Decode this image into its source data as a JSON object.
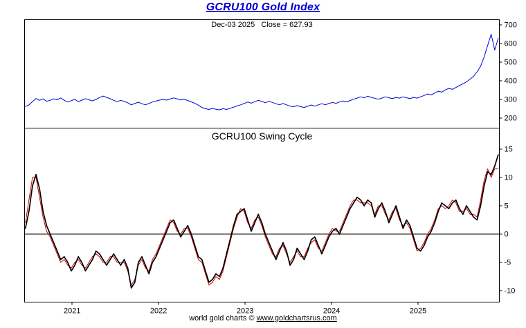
{
  "colors": {
    "title": "#0000cc",
    "axis": "#000000",
    "background": "#ffffff",
    "index_line": "#0000dd",
    "swing_fast": "#cc0000",
    "swing_slow": "#000000"
  },
  "footer": {
    "prefix": "world gold charts © ",
    "link": "www.goldchartsrus.com"
  },
  "chart_data": [
    {
      "type": "line",
      "title": "GCRU100 Gold Index",
      "subtitle": "Dec-03 2025   Close = 627.93",
      "x_range": [
        2020.45,
        2025.94
      ],
      "x_ticks": [
        2021,
        2022,
        2023,
        2024,
        2025
      ],
      "ylim": [
        146,
        728
      ],
      "yticks": [
        700,
        600,
        500,
        400,
        300,
        200
      ],
      "y_axis_side": "right",
      "grid": false,
      "legend": "none",
      "series": [
        {
          "name": "gold-index",
          "color": "#0000dd",
          "width": 1,
          "x0": 2020.46,
          "dx": 0.0408,
          "values": [
            262,
            270,
            288,
            305,
            295,
            303,
            290,
            295,
            303,
            298,
            308,
            295,
            286,
            293,
            300,
            288,
            296,
            304,
            298,
            292,
            300,
            310,
            318,
            311,
            304,
            295,
            288,
            295,
            289,
            282,
            271,
            278,
            285,
            277,
            271,
            278,
            286,
            291,
            296,
            300,
            296,
            302,
            308,
            303,
            297,
            301,
            294,
            287,
            279,
            269,
            257,
            250,
            246,
            252,
            247,
            244,
            250,
            246,
            252,
            258,
            265,
            271,
            278,
            286,
            280,
            288,
            295,
            289,
            282,
            290,
            284,
            277,
            271,
            278,
            271,
            264,
            261,
            267,
            261,
            257,
            263,
            270,
            264,
            271,
            277,
            271,
            278,
            284,
            279,
            286,
            292,
            287,
            294,
            301,
            307,
            314,
            309,
            317,
            311,
            306,
            301,
            307,
            314,
            309,
            304,
            311,
            307,
            314,
            309,
            304,
            311,
            307,
            314,
            321,
            329,
            324,
            334,
            344,
            339,
            351,
            359,
            354,
            364,
            374,
            384,
            394,
            409,
            424,
            448,
            478,
            528,
            590,
            650,
            565,
            627.93
          ]
        }
      ]
    },
    {
      "type": "line",
      "title": "GCRU100 Swing Cycle",
      "x_range": [
        2020.45,
        2025.94
      ],
      "x_ticks": [
        2021,
        2022,
        2023,
        2024,
        2025
      ],
      "ylim": [
        -12,
        18.7
      ],
      "yticks": [
        15,
        10,
        5,
        0,
        -5,
        -10
      ],
      "y_axis_side": "right",
      "grid": false,
      "zero_line": true,
      "legend": "none",
      "series": [
        {
          "name": "swing-cycle-fast",
          "color": "#cc0000",
          "width": 1,
          "x0": 2020.46,
          "dx": 0.0408,
          "values": [
            2,
            6,
            10,
            10,
            6.5,
            3,
            0.5,
            -0.5,
            -2,
            -3.5,
            -5,
            -4.5,
            -5.5,
            -6,
            -5,
            -4.5,
            -5.5,
            -6,
            -5,
            -4,
            -3.5,
            -4,
            -5,
            -5,
            -4,
            -4,
            -5,
            -5,
            -5,
            -6.5,
            -9,
            -8,
            -5.5,
            -4.5,
            -6,
            -6.5,
            -4.5,
            -3.5,
            -2,
            -0.5,
            1,
            2.5,
            2,
            0.5,
            0,
            1,
            1,
            -0.5,
            -2.5,
            -4.5,
            -5,
            -7,
            -9,
            -8.5,
            -7.5,
            -8,
            -6.5,
            -4,
            -1.5,
            1,
            3,
            4.5,
            4,
            2,
            1,
            2.5,
            3,
            1.5,
            -0.5,
            -2,
            -3.5,
            -4,
            -2.5,
            -2,
            -3.5,
            -5,
            -4,
            -3,
            -4,
            -4,
            -2.5,
            -1.5,
            -1,
            -2.5,
            -3,
            -1.5,
            0,
            1,
            0.5,
            0.5,
            2,
            3.5,
            5,
            6,
            6,
            5.5,
            5.5,
            5.5,
            5,
            3.5,
            5,
            5,
            3.5,
            2.5,
            4,
            4.5,
            2.5,
            1.5,
            2,
            1,
            -1,
            -3,
            -2.5,
            -1.5,
            0,
            1,
            2.5,
            4.5,
            5,
            4.5,
            5,
            6,
            5.5,
            4,
            4,
            4.5,
            3.5,
            3.5,
            3,
            6,
            9.5,
            11.5,
            10,
            11.5,
            11.5
          ]
        },
        {
          "name": "swing-cycle-slow",
          "color": "#000000",
          "width": 1.7,
          "x0": 2020.46,
          "dx": 0.0408,
          "values": [
            1,
            4,
            8.5,
            10.5,
            8,
            4,
            1.5,
            0,
            -1.5,
            -3,
            -4.5,
            -4,
            -5,
            -6.5,
            -5.5,
            -4,
            -5,
            -6.5,
            -5.5,
            -4.5,
            -3,
            -3.5,
            -4.5,
            -5.5,
            -4.5,
            -3.5,
            -4.5,
            -5.5,
            -4.5,
            -6,
            -9.5,
            -8.5,
            -5,
            -4,
            -5.5,
            -7,
            -5,
            -4,
            -2.5,
            -1,
            0.5,
            2,
            2.5,
            1,
            -0.5,
            0.5,
            1.5,
            0,
            -2,
            -4,
            -4.5,
            -6.5,
            -8.5,
            -8,
            -7,
            -7.5,
            -6,
            -3.5,
            -1,
            1.5,
            3.5,
            4,
            4.5,
            2.5,
            0.5,
            2,
            3.5,
            2,
            0,
            -1.5,
            -3,
            -4.5,
            -3,
            -1.5,
            -3,
            -5.5,
            -4.5,
            -2.5,
            -3.5,
            -4.5,
            -3,
            -1,
            -0.5,
            -2,
            -3.5,
            -2,
            -0.5,
            0.5,
            1,
            0,
            1.5,
            3,
            4.5,
            5.5,
            6.5,
            6,
            5,
            6,
            5.5,
            3,
            4.5,
            5.5,
            4,
            2,
            3.5,
            5,
            3,
            1,
            2.5,
            1.5,
            -0.5,
            -2.5,
            -3,
            -2,
            -0.5,
            0.5,
            2,
            4,
            5.5,
            5,
            4.5,
            5.5,
            6,
            4.5,
            3.5,
            5,
            4,
            3,
            2.5,
            5,
            8.5,
            11,
            10.5,
            12,
            14
          ]
        }
      ]
    }
  ]
}
